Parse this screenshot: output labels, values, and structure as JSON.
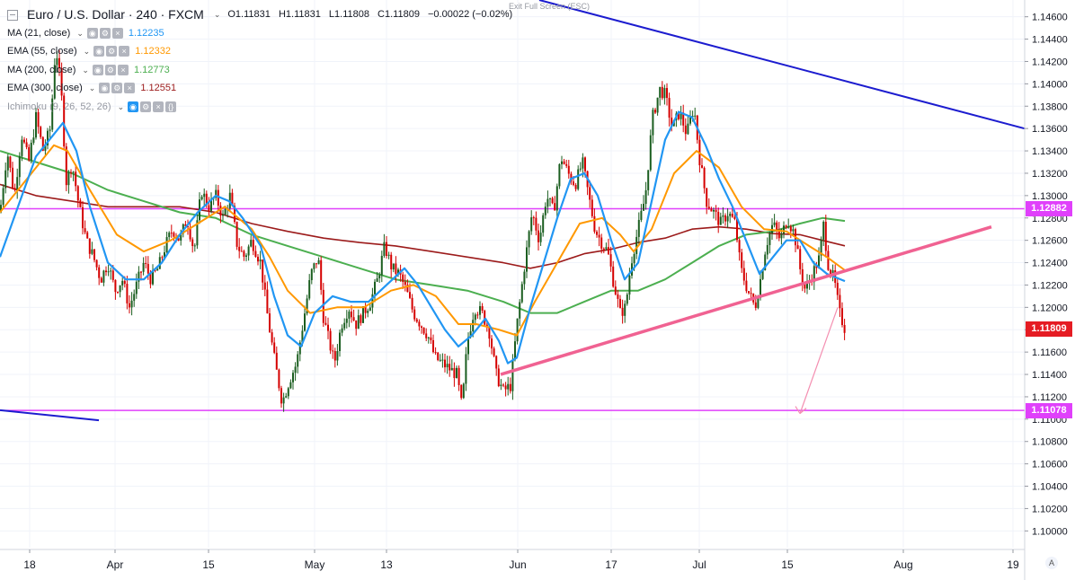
{
  "header": {
    "symbol": "Euro / U.S. Dollar · 240 · FXCM",
    "open": "O1.11831",
    "high": "H1.11831",
    "low": "L1.11808",
    "close": "C1.11809",
    "change": "−0.00022 (−0.02%)",
    "exit_fullscreen": "Exit Full Screen (ESC)"
  },
  "indicators": [
    {
      "name": "MA (21, close)",
      "value": "1.12235",
      "color": "#2196f3"
    },
    {
      "name": "EMA (55, close)",
      "value": "1.12332",
      "color": "#ff9800"
    },
    {
      "name": "MA (200, close)",
      "value": "1.12773",
      "color": "#4caf50"
    },
    {
      "name": "EMA (300, close)",
      "value": "1.12551",
      "color": "#9c1b1b"
    },
    {
      "name": "Ichimoku (9, 26, 52, 26)",
      "value": "",
      "color": "#999999"
    }
  ],
  "price_tags": {
    "resistance": {
      "label": "1.12882",
      "value": 1.12882,
      "color": "#e040fb"
    },
    "last": {
      "label": "1.11809",
      "value": 1.11809,
      "color": "#e51c23"
    },
    "support": {
      "label": "1.11078",
      "value": 1.11078,
      "color": "#e040fb"
    }
  },
  "axis_button": "A",
  "chart_data": {
    "type": "candlestick",
    "y_ticks": [
      1.1,
      1.102,
      1.104,
      1.106,
      1.108,
      1.11,
      1.112,
      1.114,
      1.116,
      1.118,
      1.12,
      1.122,
      1.124,
      1.126,
      1.128,
      1.13,
      1.132,
      1.134,
      1.136,
      1.138,
      1.14,
      1.142,
      1.144,
      1.146
    ],
    "y_tick_labels": [
      "1.10000",
      "1.10200",
      "1.10400",
      "1.10600",
      "1.10800",
      "1.11000",
      "1.11200",
      "1.11400",
      "1.11600",
      "1.11800",
      "1.12000",
      "1.12200",
      "1.12400",
      "1.12600",
      "1.12800",
      "1.13000",
      "1.13200",
      "1.13400",
      "1.13600",
      "1.13800",
      "1.14000",
      "1.14200",
      "1.14400",
      "1.14600"
    ],
    "x_labels": [
      "18",
      "Apr",
      "15",
      "May",
      "13",
      "Jun",
      "17",
      "Jul",
      "15",
      "Aug",
      "19"
    ],
    "ylim": [
      1.0985,
      1.1475
    ],
    "horizontal_levels": [
      1.12882,
      1.11078
    ],
    "close_path": [
      [
        0,
        1.1285
      ],
      [
        8,
        1.134
      ],
      [
        16,
        1.13
      ],
      [
        24,
        1.1355
      ],
      [
        32,
        1.133
      ],
      [
        40,
        1.137
      ],
      [
        48,
        1.134
      ],
      [
        56,
        1.136
      ],
      [
        62,
        1.1435
      ],
      [
        68,
        1.1395
      ],
      [
        74,
        1.131
      ],
      [
        80,
        1.133
      ],
      [
        88,
        1.129
      ],
      [
        96,
        1.126
      ],
      [
        104,
        1.1245
      ],
      [
        112,
        1.1225
      ],
      [
        120,
        1.124
      ],
      [
        128,
        1.1215
      ],
      [
        136,
        1.1225
      ],
      [
        144,
        1.12
      ],
      [
        152,
        1.122
      ],
      [
        160,
        1.124
      ],
      [
        168,
        1.1225
      ],
      [
        176,
        1.1235
      ],
      [
        184,
        1.1255
      ],
      [
        192,
        1.127
      ],
      [
        200,
        1.126
      ],
      [
        208,
        1.128
      ],
      [
        216,
        1.125
      ],
      [
        224,
        1.1305
      ],
      [
        232,
        1.129
      ],
      [
        240,
        1.13
      ],
      [
        248,
        1.128
      ],
      [
        256,
        1.13
      ],
      [
        264,
        1.1255
      ],
      [
        272,
        1.1245
      ],
      [
        280,
        1.126
      ],
      [
        290,
        1.124
      ],
      [
        298,
        1.119
      ],
      [
        306,
        1.115
      ],
      [
        314,
        1.1115
      ],
      [
        322,
        1.1135
      ],
      [
        330,
        1.115
      ],
      [
        338,
        1.119
      ],
      [
        346,
        1.123
      ],
      [
        354,
        1.1245
      ],
      [
        360,
        1.119
      ],
      [
        366,
        1.117
      ],
      [
        372,
        1.115
      ],
      [
        380,
        1.1185
      ],
      [
        388,
        1.12
      ],
      [
        396,
        1.1185
      ],
      [
        404,
        1.1195
      ],
      [
        412,
        1.1205
      ],
      [
        420,
        1.1225
      ],
      [
        428,
        1.1255
      ],
      [
        436,
        1.1235
      ],
      [
        444,
        1.123
      ],
      [
        452,
        1.1215
      ],
      [
        460,
        1.1195
      ],
      [
        468,
        1.1185
      ],
      [
        476,
        1.1175
      ],
      [
        484,
        1.1155
      ],
      [
        492,
        1.115
      ],
      [
        500,
        1.1145
      ],
      [
        508,
        1.114
      ],
      [
        514,
        1.111
      ],
      [
        520,
        1.117
      ],
      [
        528,
        1.12
      ],
      [
        536,
        1.1195
      ],
      [
        544,
        1.118
      ],
      [
        552,
        1.114
      ],
      [
        560,
        1.1125
      ],
      [
        568,
        1.113
      ],
      [
        576,
        1.119
      ],
      [
        584,
        1.124
      ],
      [
        592,
        1.1285
      ],
      [
        600,
        1.126
      ],
      [
        608,
        1.13
      ],
      [
        616,
        1.1285
      ],
      [
        624,
        1.1335
      ],
      [
        632,
        1.132
      ],
      [
        640,
        1.131
      ],
      [
        648,
        1.133
      ],
      [
        656,
        1.1295
      ],
      [
        662,
        1.127
      ],
      [
        668,
        1.126
      ],
      [
        676,
        1.125
      ],
      [
        682,
        1.1225
      ],
      [
        690,
        1.1195
      ],
      [
        696,
        1.12
      ],
      [
        702,
        1.124
      ],
      [
        710,
        1.127
      ],
      [
        718,
        1.13
      ],
      [
        726,
        1.137
      ],
      [
        734,
        1.1395
      ],
      [
        740,
        1.139
      ],
      [
        748,
        1.136
      ],
      [
        756,
        1.1375
      ],
      [
        764,
        1.1355
      ],
      [
        772,
        1.138
      ],
      [
        778,
        1.1335
      ],
      [
        786,
        1.1295
      ],
      [
        794,
        1.1285
      ],
      [
        802,
        1.1275
      ],
      [
        810,
        1.1285
      ],
      [
        818,
        1.1275
      ],
      [
        824,
        1.1235
      ],
      [
        832,
        1.1215
      ],
      [
        840,
        1.12
      ],
      [
        846,
        1.1225
      ],
      [
        852,
        1.1255
      ],
      [
        860,
        1.1275
      ],
      [
        868,
        1.126
      ],
      [
        876,
        1.128
      ],
      [
        884,
        1.1265
      ],
      [
        890,
        1.1235
      ],
      [
        896,
        1.1215
      ],
      [
        904,
        1.123
      ],
      [
        912,
        1.1245
      ],
      [
        916,
        1.1275
      ],
      [
        922,
        1.1235
      ],
      [
        928,
        1.1225
      ],
      [
        934,
        1.1195
      ],
      [
        940,
        1.11809
      ]
    ],
    "ma21_path": [
      [
        0,
        1.1245
      ],
      [
        20,
        1.129
      ],
      [
        40,
        1.1335
      ],
      [
        60,
        1.1355
      ],
      [
        70,
        1.1365
      ],
      [
        85,
        1.134
      ],
      [
        100,
        1.129
      ],
      [
        120,
        1.124
      ],
      [
        140,
        1.1225
      ],
      [
        160,
        1.1225
      ],
      [
        180,
        1.124
      ],
      [
        200,
        1.1265
      ],
      [
        220,
        1.1285
      ],
      [
        240,
        1.13
      ],
      [
        255,
        1.1295
      ],
      [
        270,
        1.128
      ],
      [
        290,
        1.1255
      ],
      [
        305,
        1.121
      ],
      [
        320,
        1.1175
      ],
      [
        335,
        1.1165
      ],
      [
        350,
        1.1195
      ],
      [
        370,
        1.121
      ],
      [
        390,
        1.1205
      ],
      [
        410,
        1.1205
      ],
      [
        430,
        1.122
      ],
      [
        450,
        1.1235
      ],
      [
        465,
        1.122
      ],
      [
        480,
        1.12
      ],
      [
        495,
        1.118
      ],
      [
        510,
        1.1165
      ],
      [
        525,
        1.1175
      ],
      [
        540,
        1.119
      ],
      [
        555,
        1.117
      ],
      [
        565,
        1.115
      ],
      [
        575,
        1.1155
      ],
      [
        590,
        1.12
      ],
      [
        605,
        1.124
      ],
      [
        620,
        1.128
      ],
      [
        635,
        1.1315
      ],
      [
        650,
        1.132
      ],
      [
        665,
        1.13
      ],
      [
        680,
        1.126
      ],
      [
        695,
        1.1225
      ],
      [
        710,
        1.124
      ],
      [
        725,
        1.1295
      ],
      [
        740,
        1.135
      ],
      [
        755,
        1.1375
      ],
      [
        770,
        1.137
      ],
      [
        785,
        1.1345
      ],
      [
        800,
        1.1315
      ],
      [
        815,
        1.129
      ],
      [
        830,
        1.126
      ],
      [
        845,
        1.123
      ],
      [
        860,
        1.1245
      ],
      [
        875,
        1.126
      ],
      [
        890,
        1.126
      ],
      [
        905,
        1.124
      ],
      [
        920,
        1.123
      ],
      [
        940,
        1.12235
      ]
    ],
    "ema55_path": [
      [
        0,
        1.1285
      ],
      [
        30,
        1.1315
      ],
      [
        60,
        1.1345
      ],
      [
        75,
        1.134
      ],
      [
        100,
        1.1305
      ],
      [
        130,
        1.1265
      ],
      [
        160,
        1.125
      ],
      [
        190,
        1.126
      ],
      [
        220,
        1.1275
      ],
      [
        250,
        1.129
      ],
      [
        280,
        1.127
      ],
      [
        300,
        1.1245
      ],
      [
        320,
        1.1215
      ],
      [
        345,
        1.1195
      ],
      [
        375,
        1.12
      ],
      [
        405,
        1.12
      ],
      [
        435,
        1.1215
      ],
      [
        460,
        1.122
      ],
      [
        485,
        1.121
      ],
      [
        510,
        1.1185
      ],
      [
        530,
        1.1185
      ],
      [
        555,
        1.118
      ],
      [
        575,
        1.1175
      ],
      [
        595,
        1.1205
      ],
      [
        620,
        1.124
      ],
      [
        645,
        1.1275
      ],
      [
        670,
        1.128
      ],
      [
        690,
        1.1265
      ],
      [
        705,
        1.125
      ],
      [
        725,
        1.127
      ],
      [
        750,
        1.132
      ],
      [
        775,
        1.134
      ],
      [
        800,
        1.1325
      ],
      [
        825,
        1.129
      ],
      [
        850,
        1.127
      ],
      [
        875,
        1.1268
      ],
      [
        900,
        1.1255
      ],
      [
        920,
        1.1245
      ],
      [
        940,
        1.12332
      ]
    ],
    "ma200_path": [
      [
        0,
        1.134
      ],
      [
        40,
        1.133
      ],
      [
        80,
        1.132
      ],
      [
        120,
        1.1305
      ],
      [
        160,
        1.1295
      ],
      [
        200,
        1.1285
      ],
      [
        240,
        1.128
      ],
      [
        280,
        1.1265
      ],
      [
        320,
        1.1255
      ],
      [
        360,
        1.1245
      ],
      [
        400,
        1.1235
      ],
      [
        440,
        1.1225
      ],
      [
        480,
        1.122
      ],
      [
        520,
        1.1215
      ],
      [
        560,
        1.1205
      ],
      [
        590,
        1.1195
      ],
      [
        620,
        1.1195
      ],
      [
        650,
        1.1205
      ],
      [
        680,
        1.1215
      ],
      [
        710,
        1.1215
      ],
      [
        740,
        1.1225
      ],
      [
        770,
        1.124
      ],
      [
        800,
        1.1255
      ],
      [
        830,
        1.1265
      ],
      [
        860,
        1.1268
      ],
      [
        890,
        1.1275
      ],
      [
        915,
        1.128
      ],
      [
        940,
        1.12773
      ]
    ],
    "ema300_path": [
      [
        0,
        1.131
      ],
      [
        40,
        1.13
      ],
      [
        80,
        1.1295
      ],
      [
        120,
        1.129
      ],
      [
        160,
        1.129
      ],
      [
        200,
        1.129
      ],
      [
        240,
        1.1285
      ],
      [
        280,
        1.1275
      ],
      [
        320,
        1.1268
      ],
      [
        360,
        1.1262
      ],
      [
        400,
        1.1258
      ],
      [
        440,
        1.1255
      ],
      [
        480,
        1.125
      ],
      [
        520,
        1.1245
      ],
      [
        560,
        1.124
      ],
      [
        590,
        1.1235
      ],
      [
        620,
        1.124
      ],
      [
        650,
        1.1248
      ],
      [
        680,
        1.1252
      ],
      [
        710,
        1.1258
      ],
      [
        740,
        1.1262
      ],
      [
        770,
        1.127
      ],
      [
        800,
        1.1272
      ],
      [
        830,
        1.127
      ],
      [
        860,
        1.1266
      ],
      [
        890,
        1.1265
      ],
      [
        915,
        1.126
      ],
      [
        940,
        1.12551
      ]
    ],
    "trendline_upper": [
      [
        600,
        1.1475
      ],
      [
        1140,
        1.136
      ]
    ],
    "trendline_upper2": [
      [
        0,
        1.1108
      ],
      [
        110,
        1.1099
      ]
    ],
    "trendline_rising": [
      [
        557,
        1.114
      ],
      [
        1103,
        1.1272
      ]
    ],
    "projection_arrow": [
      [
        932,
        1.12
      ],
      [
        890,
        1.1105
      ]
    ]
  }
}
